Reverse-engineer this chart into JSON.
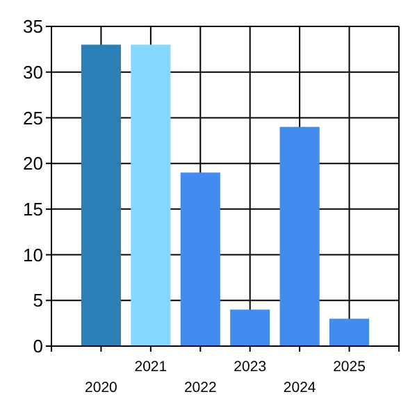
{
  "chart_data": {
    "type": "bar",
    "categories": [
      "2020",
      "2021",
      "2022",
      "2023",
      "2024",
      "2025"
    ],
    "values": [
      33,
      33,
      19,
      4,
      24,
      3
    ],
    "colors": [
      "#2a7fb6",
      "#87d8fe",
      "#428bef",
      "#428bef",
      "#428bef",
      "#428bef"
    ],
    "ylim": [
      0,
      35
    ],
    "yticks": [
      0,
      5,
      10,
      15,
      20,
      25,
      30,
      35
    ],
    "grid": true
  }
}
